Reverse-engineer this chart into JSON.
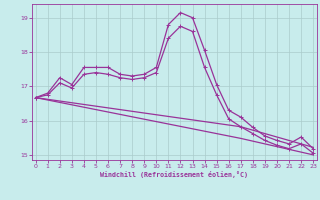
{
  "xlabel": "Windchill (Refroidissement éolien,°C)",
  "background_color": "#c8ecec",
  "line_color": "#993399",
  "grid_color": "#aacccc",
  "x": [
    0,
    1,
    2,
    3,
    4,
    5,
    6,
    7,
    8,
    9,
    10,
    11,
    12,
    13,
    14,
    15,
    16,
    17,
    18,
    19,
    20,
    21,
    22,
    23
  ],
  "line1": [
    16.67,
    16.8,
    17.25,
    17.05,
    17.55,
    17.55,
    17.55,
    17.35,
    17.3,
    17.35,
    17.55,
    18.8,
    19.15,
    19.0,
    18.05,
    17.05,
    16.3,
    16.1,
    15.8,
    15.55,
    15.42,
    15.32,
    15.52,
    15.18
  ],
  "line2": [
    16.67,
    16.75,
    17.1,
    16.95,
    17.35,
    17.4,
    17.35,
    17.25,
    17.2,
    17.25,
    17.4,
    18.4,
    18.75,
    18.6,
    17.55,
    16.75,
    16.05,
    15.82,
    15.62,
    15.42,
    15.28,
    15.18,
    15.32,
    15.05
  ],
  "line3": [
    16.67,
    16.62,
    16.57,
    16.52,
    16.47,
    16.42,
    16.37,
    16.32,
    16.27,
    16.22,
    16.17,
    16.12,
    16.07,
    16.02,
    15.97,
    15.92,
    15.87,
    15.82,
    15.72,
    15.62,
    15.52,
    15.42,
    15.32,
    15.22
  ],
  "line4": [
    16.67,
    16.6,
    16.53,
    16.46,
    16.39,
    16.32,
    16.25,
    16.18,
    16.11,
    16.04,
    15.97,
    15.9,
    15.83,
    15.76,
    15.69,
    15.62,
    15.55,
    15.48,
    15.4,
    15.32,
    15.24,
    15.16,
    15.08,
    15.0
  ],
  "ylim": [
    14.85,
    19.4
  ],
  "yticks": [
    15,
    16,
    17,
    18,
    19
  ],
  "xlim": [
    -0.3,
    23.3
  ],
  "xticks": [
    0,
    1,
    2,
    3,
    4,
    5,
    6,
    7,
    8,
    9,
    10,
    11,
    12,
    13,
    14,
    15,
    16,
    17,
    18,
    19,
    20,
    21,
    22,
    23
  ]
}
